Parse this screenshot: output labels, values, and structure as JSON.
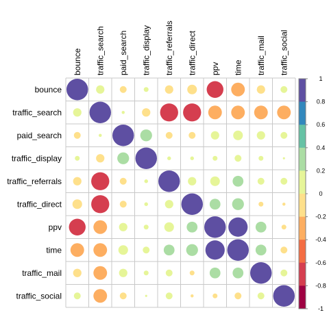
{
  "chart_data": {
    "type": "heatmap",
    "subtype": "correlation-circle-matrix",
    "variables": [
      "bounce",
      "traffic_search",
      "paid_search",
      "traffic_display",
      "traffic_referrals",
      "traffic_direct",
      "ppv",
      "time",
      "traffic_mail",
      "traffic_social"
    ],
    "matrix": [
      [
        1.0,
        0.15,
        -0.1,
        0.05,
        -0.15,
        -0.2,
        -0.6,
        -0.4,
        -0.15,
        0.1
      ],
      [
        0.15,
        1.0,
        0.02,
        -0.15,
        -0.7,
        -0.7,
        -0.4,
        -0.4,
        -0.4,
        -0.4
      ],
      [
        -0.1,
        0.02,
        1.0,
        0.3,
        -0.1,
        -0.1,
        0.15,
        0.2,
        0.15,
        0.1
      ],
      [
        0.05,
        -0.15,
        0.3,
        1.0,
        0.03,
        0.03,
        0.05,
        0.1,
        0.05,
        0.01
      ],
      [
        -0.15,
        -0.7,
        -0.1,
        0.03,
        1.0,
        0.15,
        0.2,
        0.25,
        0.1,
        0.1
      ],
      [
        -0.2,
        -0.7,
        -0.1,
        0.03,
        0.15,
        1.0,
        0.25,
        0.3,
        -0.05,
        -0.02
      ],
      [
        -0.6,
        -0.4,
        0.15,
        0.05,
        0.2,
        0.25,
        1.0,
        0.8,
        0.25,
        -0.05
      ],
      [
        -0.4,
        -0.4,
        0.2,
        0.1,
        0.25,
        0.3,
        0.8,
        1.0,
        0.25,
        -0.1
      ],
      [
        -0.15,
        -0.4,
        0.15,
        0.05,
        0.1,
        -0.05,
        0.25,
        0.25,
        1.0,
        0.1
      ],
      [
        0.1,
        -0.4,
        -0.1,
        0.01,
        0.1,
        -0.02,
        -0.05,
        -0.1,
        0.1,
        1.0
      ]
    ],
    "colorbar": {
      "range": [
        -1,
        1
      ],
      "ticks": [
        "1",
        "0.8",
        "0.6",
        "0.4",
        "0.2",
        "0",
        "-0.2",
        "-0.4",
        "-0.6",
        "-0.8",
        "-1"
      ],
      "colors_high_to_low": [
        "#5e4fa2",
        "#3288bd",
        "#66c2a5",
        "#abdda4",
        "#e6f598",
        "#fee08b",
        "#fdae61",
        "#f46d43",
        "#d53e4f",
        "#9e0142"
      ]
    },
    "grid": true,
    "legend_placement": "right"
  }
}
